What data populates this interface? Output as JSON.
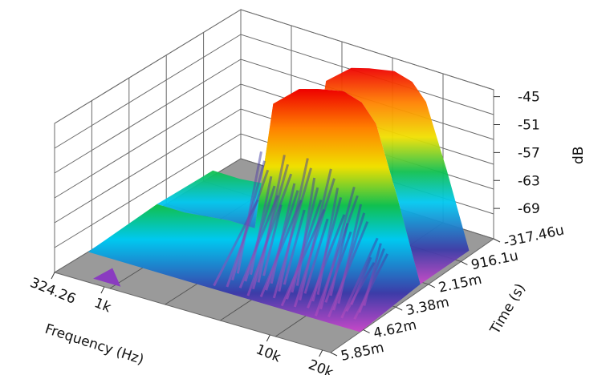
{
  "chart_data": {
    "type": "surface3d",
    "title": "",
    "xlabel": "Frequency (Hz)",
    "ylabel": "Time (s)",
    "zlabel": "dB",
    "x_ticks": [
      "324.26",
      "1k",
      "10k",
      "20k"
    ],
    "y_ticks": [
      "-317.46u",
      "916.1u",
      "2.15m",
      "3.38m",
      "4.62m",
      "5.85m"
    ],
    "z_ticks": [
      "-45",
      "-51",
      "-57",
      "-63",
      "-69"
    ],
    "x_scale": "log",
    "zlim": [
      -75,
      -43
    ],
    "grid": true,
    "colormap": [
      "#c040c0",
      "#3a3aa8",
      "#00c8f0",
      "#00c060",
      "#f0e000",
      "#ff8000",
      "#ee0000"
    ],
    "floor_color": "#9a9a9a",
    "surface_profile": {
      "x_frequency_hz": [
        324.26,
        500,
        1000,
        1500,
        2000,
        3000,
        4000,
        6000,
        8000,
        10000,
        14000,
        20000
      ],
      "z_peak_db": [
        -74,
        -74,
        -73,
        -73,
        -50,
        -46,
        -45,
        -44,
        -45,
        -48,
        -60,
        -74
      ]
    }
  }
}
